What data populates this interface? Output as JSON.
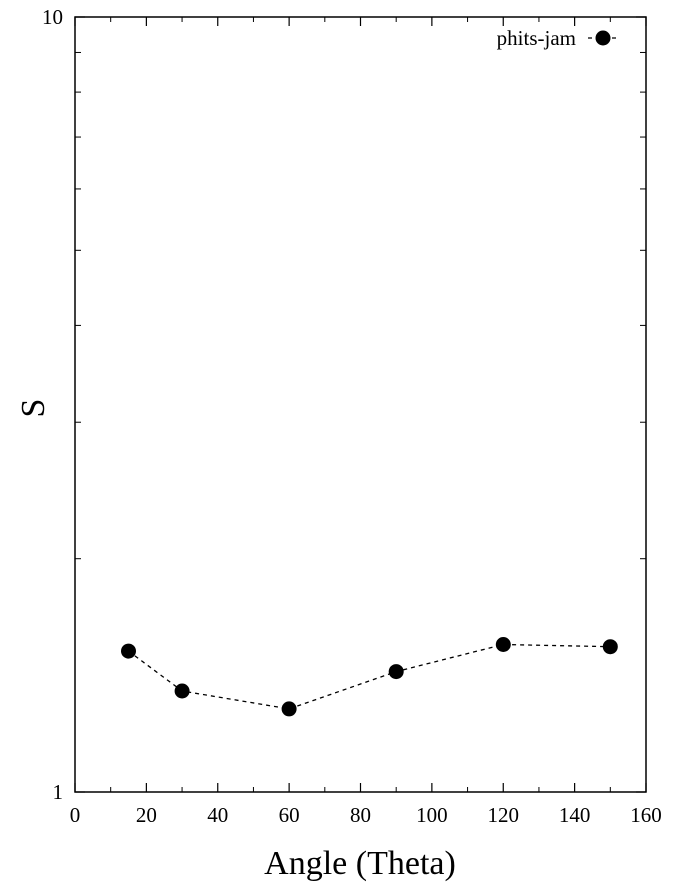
{
  "chart_data": {
    "type": "scatter",
    "title": "",
    "xlabel": "Angle (Theta)",
    "ylabel": "S",
    "xlim": [
      0,
      160
    ],
    "ylim": [
      1,
      10
    ],
    "yscale": "log",
    "grid": false,
    "legend_position": "top-right",
    "x_ticks": [
      "0",
      "20",
      "40",
      "60",
      "80",
      "100",
      "120",
      "140",
      "160"
    ],
    "y_tick_labels": [
      "1",
      "10"
    ],
    "series": [
      {
        "name": "phits-jam",
        "marker": "filled-circle",
        "line": "dashed",
        "color": "#000000",
        "x": [
          15,
          30,
          60,
          90,
          120,
          150
        ],
        "y": [
          1.52,
          1.35,
          1.28,
          1.43,
          1.55,
          1.54
        ]
      }
    ]
  }
}
